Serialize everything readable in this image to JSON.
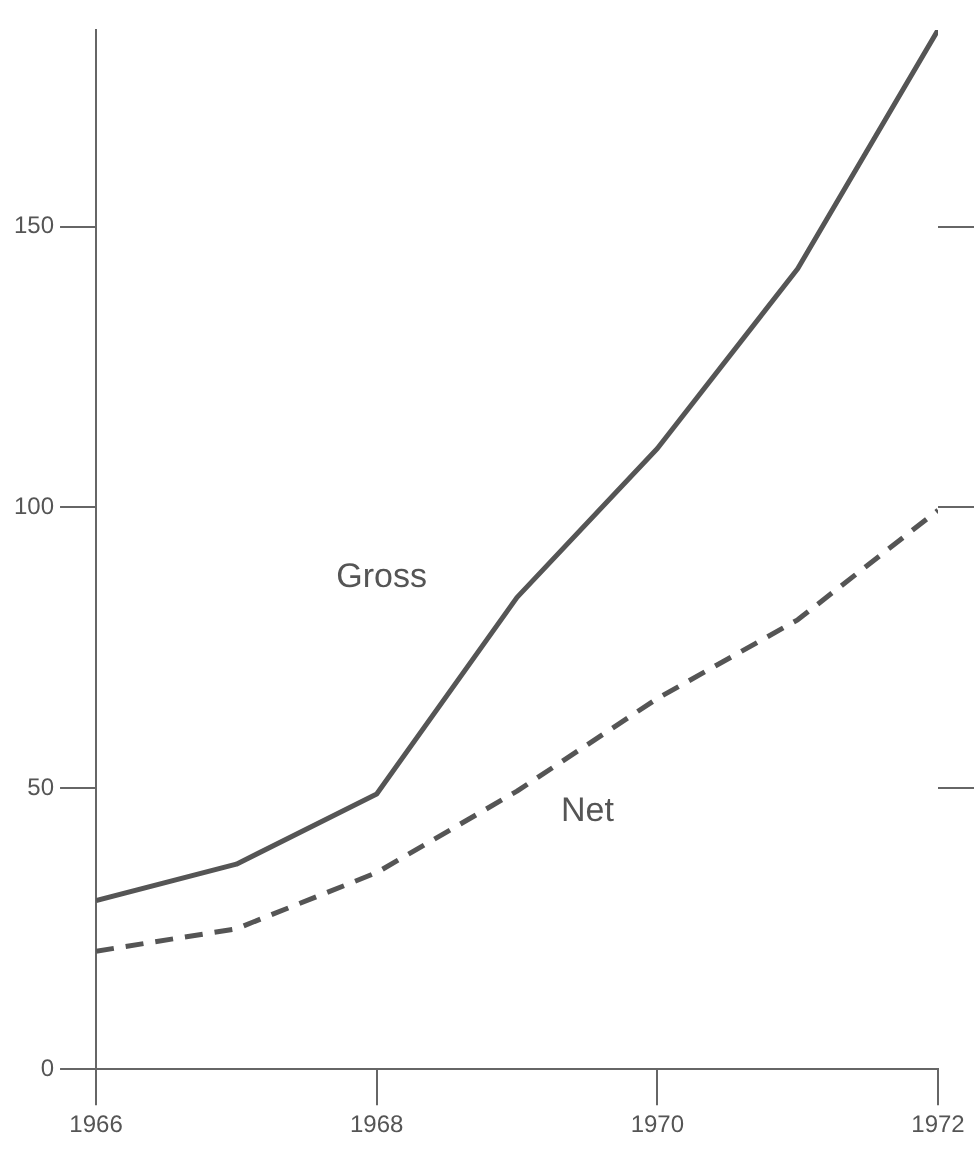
{
  "chart_data": {
    "type": "line",
    "x": [
      1966,
      1967,
      1968,
      1969,
      1970,
      1971,
      1972
    ],
    "series": [
      {
        "name": "Gross",
        "color": "#555555",
        "line_style": "solid",
        "values": [
          30,
          36.5,
          49,
          84,
          110.5,
          142.5,
          185
        ]
      },
      {
        "name": "Net",
        "color": "#555555",
        "line_style": "dashed",
        "values": [
          21,
          25,
          35,
          49.5,
          66,
          80,
          99.5
        ]
      }
    ],
    "xlim": [
      1966,
      1972
    ],
    "xticks": [
      1966,
      1968,
      1970,
      1972
    ],
    "ylim": [
      0,
      185
    ],
    "yticks": [
      0,
      50,
      100,
      150
    ],
    "grid": false,
    "legend": false,
    "marker": "none"
  }
}
